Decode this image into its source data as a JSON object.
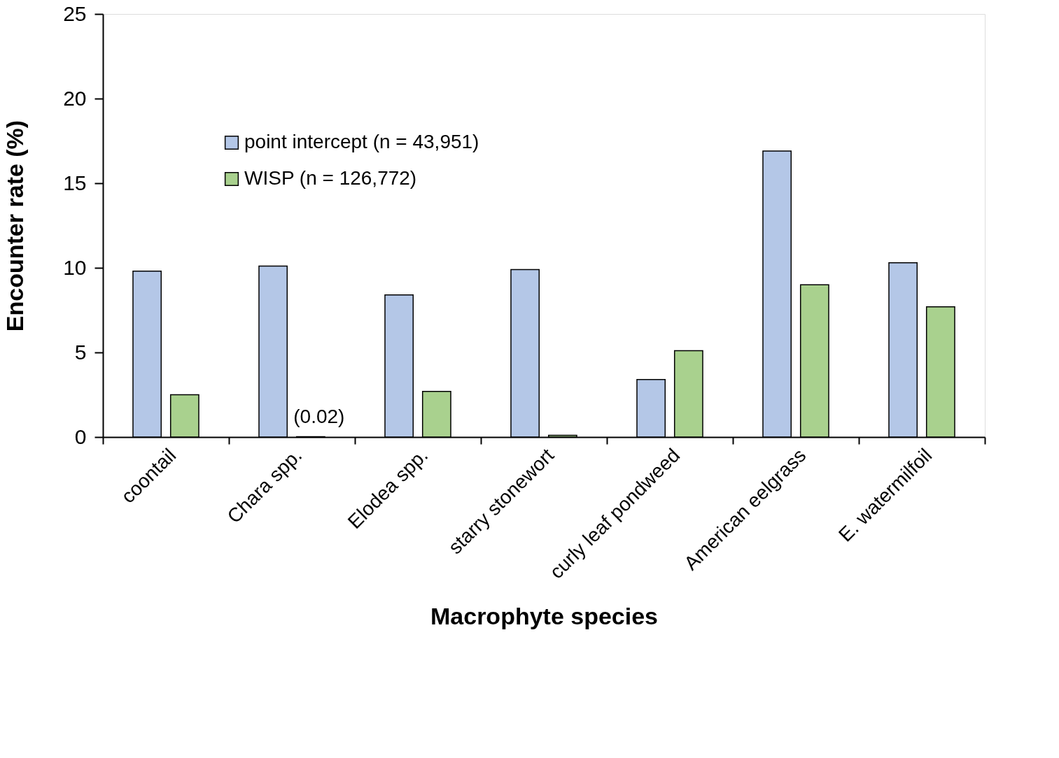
{
  "chart_data": {
    "type": "bar",
    "xlabel": "Macrophyte species",
    "ylabel": "Encounter rate (%)",
    "categories": [
      "coontail",
      "Chara spp.",
      "Elodea spp.",
      "starry stonewort",
      "curly leaf pondweed",
      "American eelgrass",
      "E. watermilfoil"
    ],
    "series": [
      {
        "name": "point intercept (n = 43,951)",
        "color": "#b4c7e7",
        "values": [
          9.8,
          10.1,
          8.4,
          9.9,
          3.4,
          16.9,
          10.3
        ]
      },
      {
        "name": "WISP (n = 126,772)",
        "color": "#a9d18e",
        "values": [
          2.5,
          0.02,
          2.7,
          0.1,
          5.1,
          9.0,
          7.7
        ],
        "value_labels": [
          null,
          "(0.02)",
          null,
          null,
          null,
          null,
          null
        ]
      }
    ],
    "ylim": [
      0,
      25
    ],
    "yticks": [
      0,
      5,
      10,
      15,
      20,
      25
    ],
    "grid": false,
    "legend": "top left"
  }
}
